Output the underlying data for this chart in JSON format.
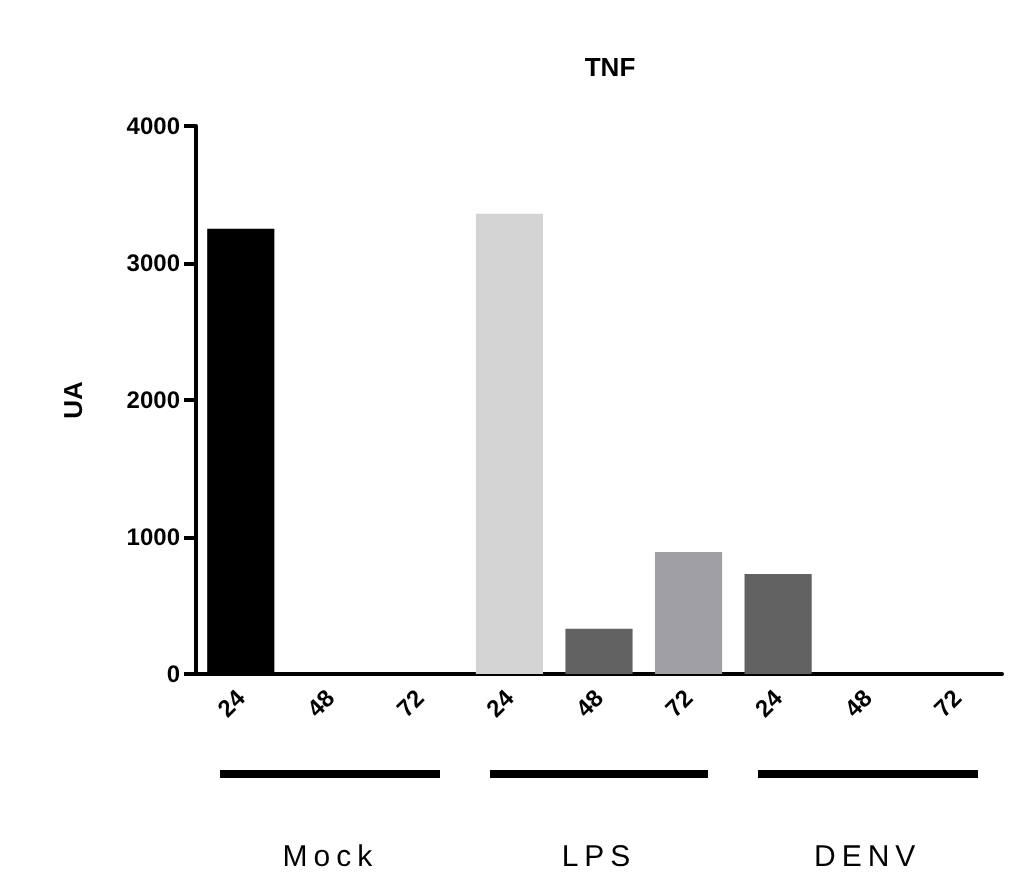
{
  "chart_data": {
    "type": "bar",
    "title": "TNF",
    "ylabel": "UA",
    "categories": [
      "24",
      "48",
      "72",
      "24",
      "48",
      "72",
      "24",
      "48",
      "72"
    ],
    "values": [
      3250,
      0,
      0,
      3360,
      330,
      890,
      730,
      0,
      0
    ],
    "colors": [
      "#000000",
      "#000000",
      "#000000",
      "#d4d4d4",
      "#626262",
      "#a0a0a4",
      "#626262",
      "#626262",
      "#626262"
    ],
    "ylim": [
      0,
      4000
    ],
    "yticks": [
      0,
      1000,
      2000,
      3000,
      4000
    ],
    "grid": false,
    "annotations": [
      "Mock",
      "LPS",
      "DENV"
    ]
  }
}
